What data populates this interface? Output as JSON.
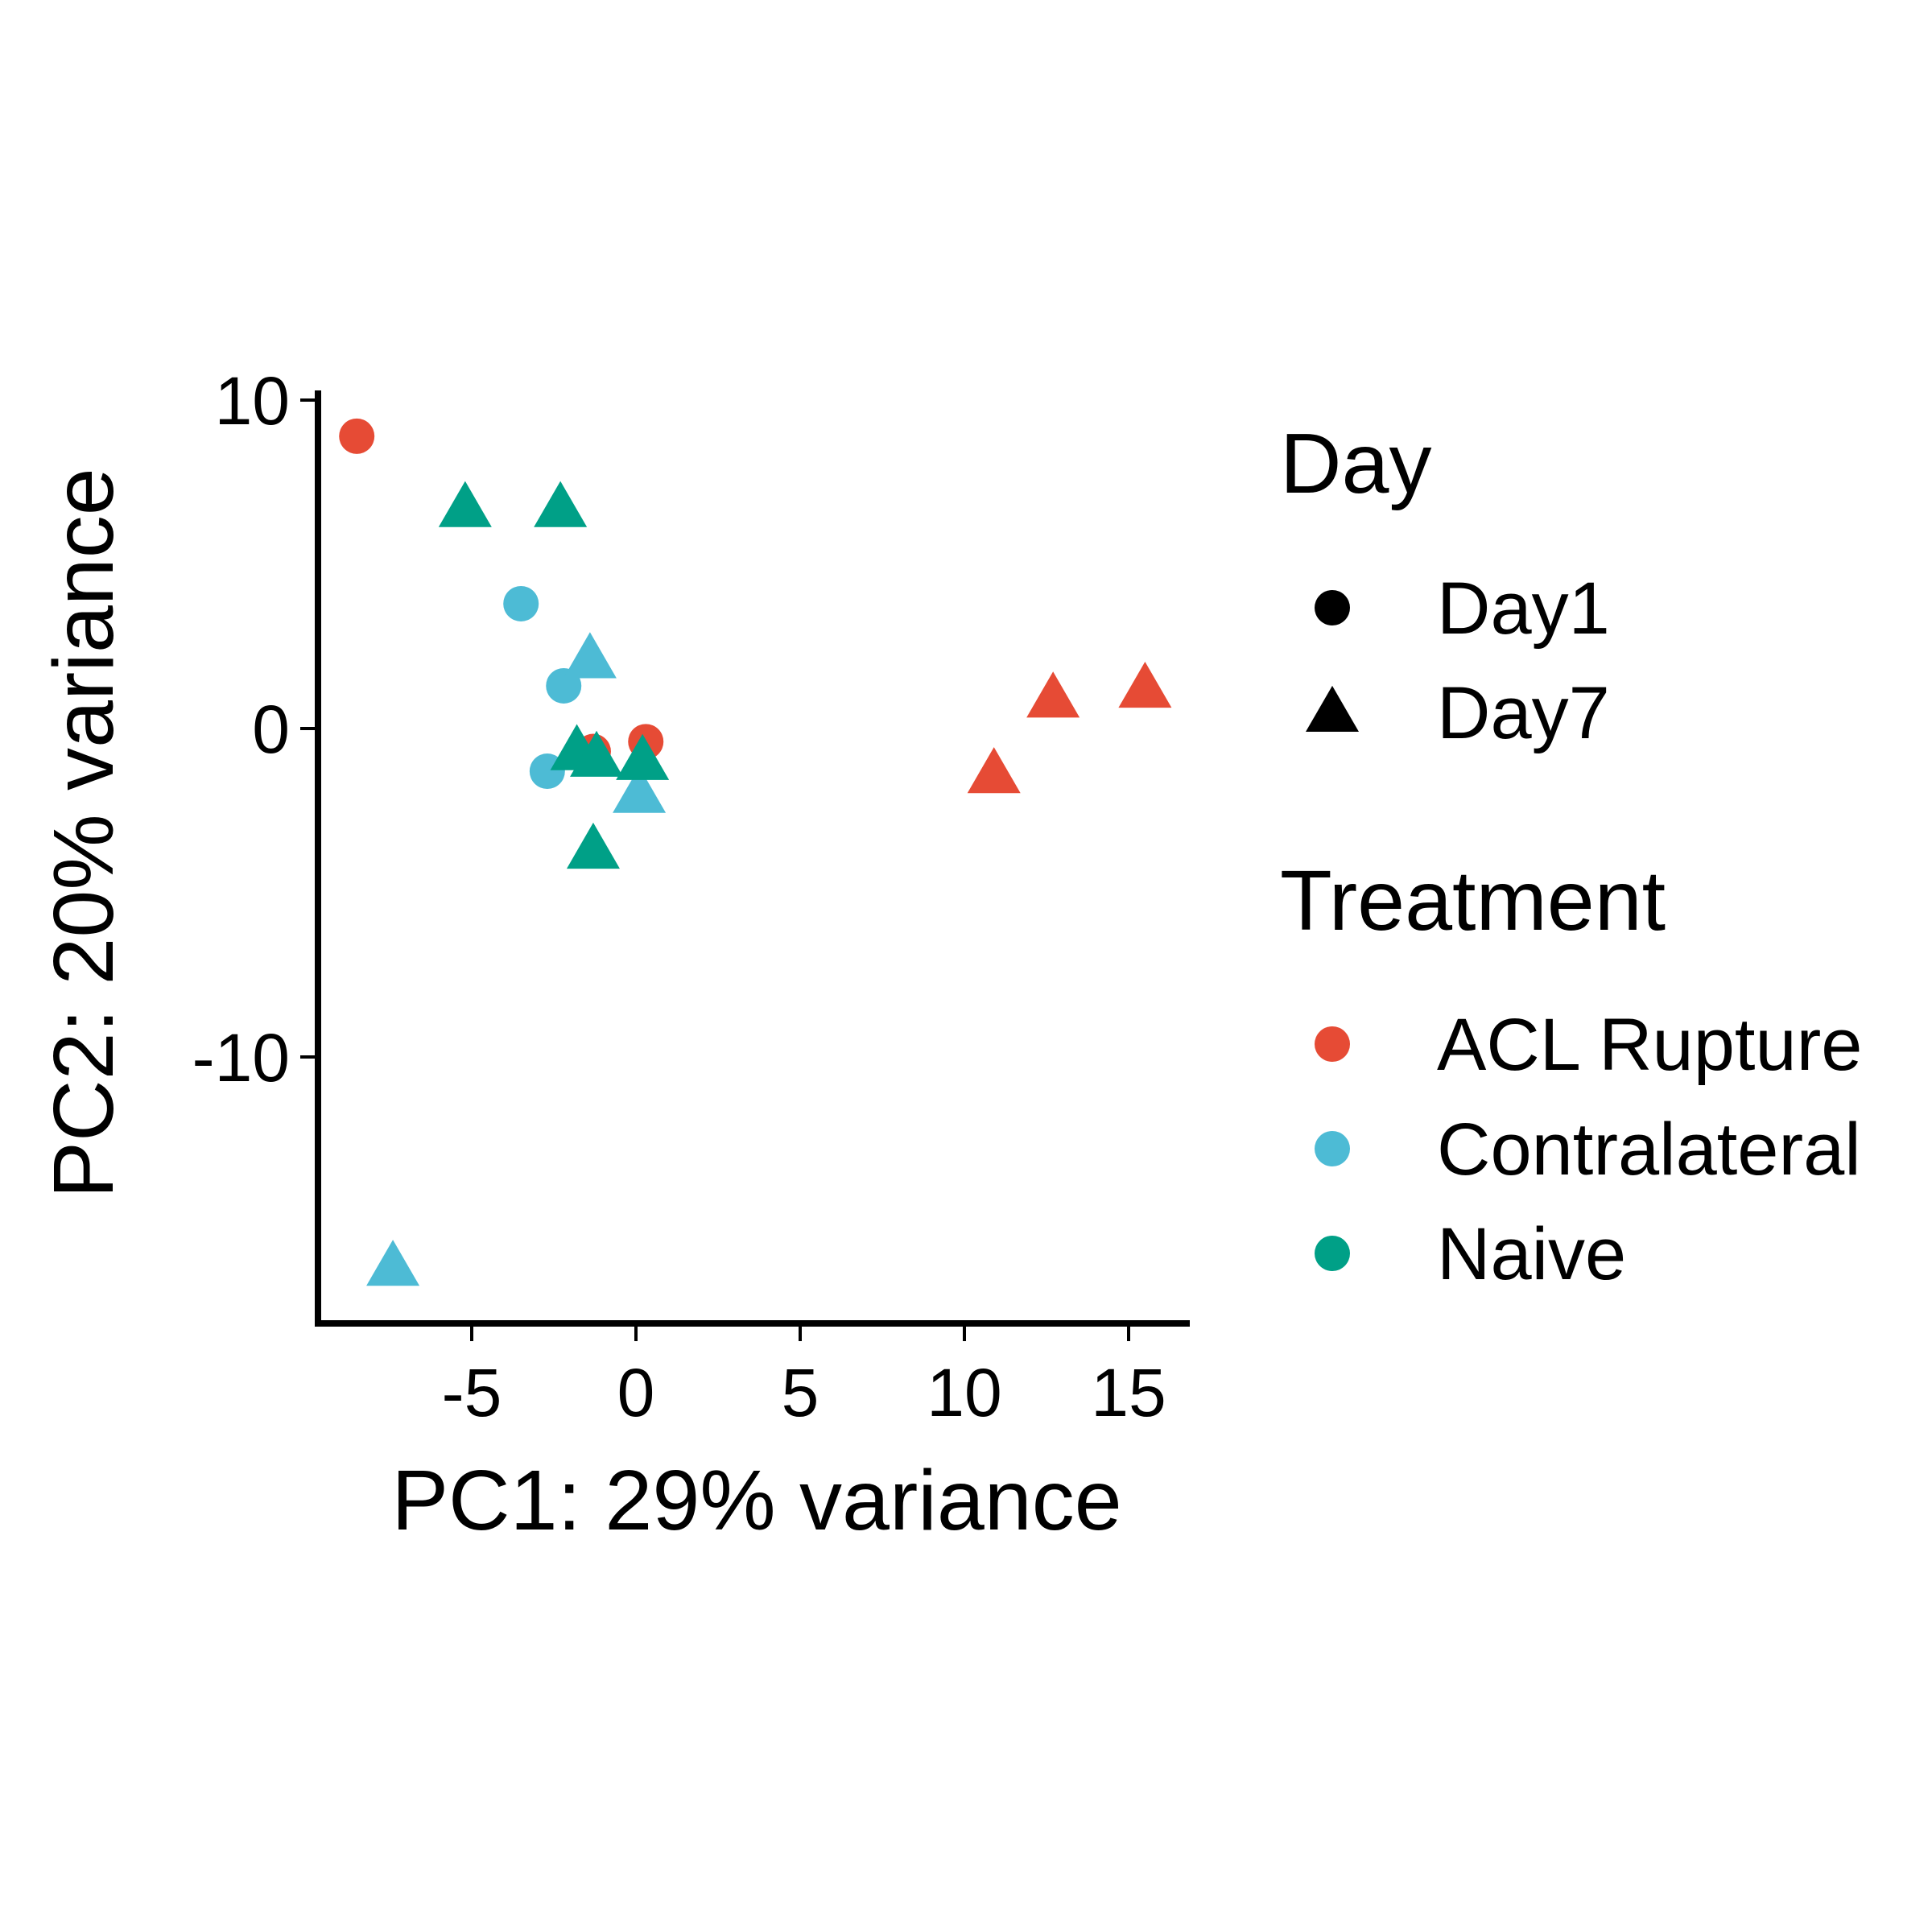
{
  "chart_data": {
    "type": "scatter",
    "xlabel": "PC1: 29% variance",
    "ylabel": "PC2: 20% variance",
    "xlim": [
      -9.8,
      16.8
    ],
    "ylim": [
      -18.2,
      10.3
    ],
    "x_ticks": [
      -5,
      0,
      5,
      10,
      15
    ],
    "x_tick_labels": [
      "-5",
      "0",
      "5",
      "10",
      "15"
    ],
    "y_ticks": [
      10,
      0,
      -10
    ],
    "y_tick_labels": [
      "10",
      "0",
      "-10"
    ],
    "grid": false,
    "legend": {
      "position": "right",
      "groups": [
        {
          "title": "Day",
          "items": [
            {
              "label": "Day1",
              "shape": "circle",
              "color": "#000000"
            },
            {
              "label": "Day7",
              "shape": "triangle",
              "color": "#000000"
            }
          ]
        },
        {
          "title": "Treatment",
          "items": [
            {
              "label": "ACL Rupture",
              "shape": "circle",
              "color": "#E64B35"
            },
            {
              "label": "Contralateral",
              "shape": "circle",
              "color": "#4DBBD5"
            },
            {
              "label": "Naive",
              "shape": "circle",
              "color": "#00A087"
            }
          ]
        }
      ]
    },
    "colors": {
      "ACL Rupture": "#E64B35",
      "Contralateral": "#4DBBD5",
      "Naive": "#00A087"
    },
    "shapes": {
      "Day1": "circle",
      "Day7": "triangle"
    },
    "points": [
      {
        "x": -8.5,
        "y": 8.9,
        "treatment": "ACL Rupture",
        "day": "Day1"
      },
      {
        "x": -1.3,
        "y": -0.7,
        "treatment": "ACL Rupture",
        "day": "Day1"
      },
      {
        "x": 0.3,
        "y": -0.4,
        "treatment": "ACL Rupture",
        "day": "Day1"
      },
      {
        "x": 10.9,
        "y": -1.5,
        "treatment": "ACL Rupture",
        "day": "Day7"
      },
      {
        "x": 12.7,
        "y": 0.8,
        "treatment": "ACL Rupture",
        "day": "Day7"
      },
      {
        "x": 15.5,
        "y": 1.1,
        "treatment": "ACL Rupture",
        "day": "Day7"
      },
      {
        "x": -3.5,
        "y": 3.8,
        "treatment": "Contralateral",
        "day": "Day1"
      },
      {
        "x": -2.2,
        "y": 1.3,
        "treatment": "Contralateral",
        "day": "Day1"
      },
      {
        "x": -2.7,
        "y": -1.3,
        "treatment": "Contralateral",
        "day": "Day1"
      },
      {
        "x": -1.4,
        "y": 2.0,
        "treatment": "Contralateral",
        "day": "Day7"
      },
      {
        "x": 0.1,
        "y": -2.1,
        "treatment": "Contralateral",
        "day": "Day7"
      },
      {
        "x": -7.4,
        "y": -16.5,
        "treatment": "Contralateral",
        "day": "Day7"
      },
      {
        "x": -5.2,
        "y": 6.6,
        "treatment": "Naive",
        "day": "Day7"
      },
      {
        "x": -2.3,
        "y": 6.6,
        "treatment": "Naive",
        "day": "Day7"
      },
      {
        "x": -1.8,
        "y": -0.8,
        "treatment": "Naive",
        "day": "Day7"
      },
      {
        "x": -1.2,
        "y": -1.0,
        "treatment": "Naive",
        "day": "Day7"
      },
      {
        "x": 0.2,
        "y": -1.1,
        "treatment": "Naive",
        "day": "Day7"
      },
      {
        "x": -1.3,
        "y": -3.8,
        "treatment": "Naive",
        "day": "Day7"
      }
    ]
  }
}
